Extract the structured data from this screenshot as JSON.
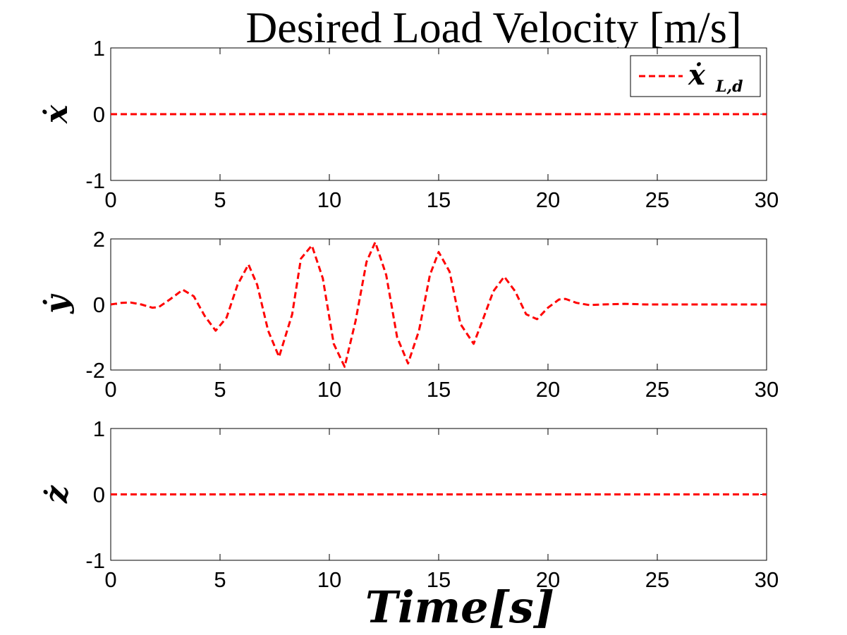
{
  "colors": {
    "series": "#ff0000",
    "axes": "#000000",
    "background": "#ffffff"
  },
  "figure": {
    "title": "Desired Load Velocity [m/s]",
    "xlabel": "Time[s]"
  },
  "legend": {
    "label": "ẋ",
    "subscript": "L,d",
    "placement": "top-right",
    "style": "red dashed"
  },
  "chart_data": [
    {
      "type": "line",
      "ylabel": "ẋ",
      "xlim": [
        0,
        30
      ],
      "ylim": [
        -1,
        1
      ],
      "xticks": [
        "0",
        "5",
        "10",
        "15",
        "20",
        "25",
        "30"
      ],
      "yticks": [
        "1",
        "0",
        "-1"
      ],
      "grid": false,
      "series": [
        {
          "x": [
            0,
            30
          ],
          "y": [
            0,
            0
          ]
        }
      ]
    },
    {
      "type": "line",
      "ylabel": "ẏ",
      "xlim": [
        0,
        30
      ],
      "ylim": [
        -2,
        2
      ],
      "xticks": [
        "0",
        "5",
        "10",
        "15",
        "20",
        "25",
        "30"
      ],
      "yticks": [
        "2",
        "0",
        "-2"
      ],
      "grid": false,
      "series": [
        {
          "x": [
            0,
            0.5,
            0.9,
            1.4,
            1.9,
            2.2,
            2.7,
            3.3,
            3.8,
            4.3,
            4.8,
            5.3,
            5.8,
            6.3,
            6.7,
            7.2,
            7.7,
            8.3,
            8.7,
            9.2,
            9.7,
            10.2,
            10.7,
            11.2,
            11.7,
            12.1,
            12.6,
            13.1,
            13.6,
            14.1,
            14.6,
            15.0,
            15.5,
            16.0,
            16.6,
            17.0,
            17.5,
            18.0,
            18.5,
            19.0,
            19.5,
            20.0,
            20.5,
            20.8,
            21.3,
            21.9,
            22.5,
            23.5,
            24.5,
            30
          ],
          "y": [
            0,
            0.05,
            0.06,
            0.0,
            -0.1,
            -0.08,
            0.15,
            0.45,
            0.25,
            -0.35,
            -0.8,
            -0.4,
            0.6,
            1.22,
            0.6,
            -0.8,
            -1.6,
            -0.3,
            1.4,
            1.8,
            0.8,
            -1.2,
            -1.9,
            -0.5,
            1.3,
            1.9,
            0.9,
            -1.0,
            -1.8,
            -0.8,
            0.9,
            1.6,
            1.0,
            -0.6,
            -1.2,
            -0.5,
            0.4,
            0.85,
            0.4,
            -0.3,
            -0.45,
            -0.1,
            0.15,
            0.17,
            0.05,
            -0.02,
            0.0,
            0.02,
            0.0,
            0.0
          ]
        }
      ]
    },
    {
      "type": "line",
      "ylabel": "ż",
      "xlim": [
        0,
        30
      ],
      "ylim": [
        -1,
        1
      ],
      "xticks": [
        "0",
        "5",
        "10",
        "15",
        "20",
        "25",
        "30"
      ],
      "yticks": [
        "1",
        "0",
        "-1"
      ],
      "grid": false,
      "series": [
        {
          "x": [
            0,
            30
          ],
          "y": [
            0,
            0
          ]
        }
      ]
    }
  ]
}
